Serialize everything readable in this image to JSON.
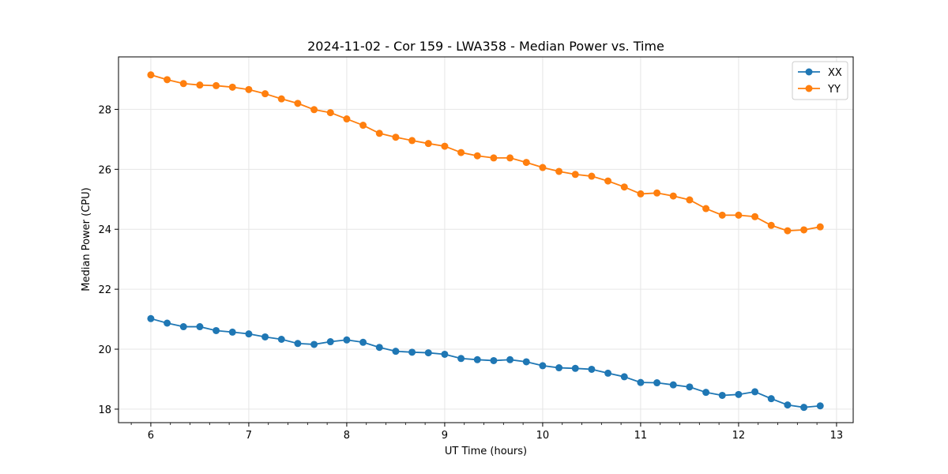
{
  "chart_data": {
    "type": "line",
    "title": "2024-11-02 - Cor 159 - LWA358 - Median Power vs. Time",
    "xlabel": "UT Time (hours)",
    "ylabel": "Median Power (CPU)",
    "xlim": [
      5.67,
      13.17
    ],
    "ylim": [
      17.55,
      29.75
    ],
    "xticks": [
      6,
      7,
      8,
      9,
      10,
      11,
      12,
      13
    ],
    "yticks": [
      18,
      20,
      22,
      24,
      26,
      28
    ],
    "grid": true,
    "legend_position": "top-right",
    "x": [
      6.0,
      6.1667,
      6.3333,
      6.5,
      6.6667,
      6.8333,
      7.0,
      7.1667,
      7.3333,
      7.5,
      7.6667,
      7.8333,
      8.0,
      8.1667,
      8.3333,
      8.5,
      8.6667,
      8.8333,
      9.0,
      9.1667,
      9.3333,
      9.5,
      9.6667,
      9.8333,
      10.0,
      10.1667,
      10.3333,
      10.5,
      10.6667,
      10.8333,
      11.0,
      11.1667,
      11.3333,
      11.5,
      11.6667,
      11.8333,
      12.0,
      12.1667,
      12.3333,
      12.5,
      12.6667,
      12.8333
    ],
    "series": [
      {
        "name": "XX",
        "color": "#1f77b4",
        "values": [
          21.02,
          20.87,
          20.75,
          20.75,
          20.62,
          20.57,
          20.51,
          20.41,
          20.33,
          20.19,
          20.16,
          20.25,
          20.31,
          20.23,
          20.06,
          19.93,
          19.9,
          19.88,
          19.83,
          19.69,
          19.65,
          19.62,
          19.65,
          19.58,
          19.45,
          19.38,
          19.36,
          19.33,
          19.2,
          19.08,
          18.89,
          18.88,
          18.81,
          18.74,
          18.56,
          18.46,
          18.49,
          18.58,
          18.35,
          18.14,
          18.06,
          18.11
        ]
      },
      {
        "name": "YY",
        "color": "#ff7f0e",
        "values": [
          29.15,
          28.99,
          28.86,
          28.81,
          28.79,
          28.74,
          28.66,
          28.52,
          28.35,
          28.2,
          27.99,
          27.89,
          27.68,
          27.47,
          27.2,
          27.07,
          26.96,
          26.86,
          26.77,
          26.56,
          26.45,
          26.38,
          26.38,
          26.23,
          26.06,
          25.93,
          25.83,
          25.77,
          25.61,
          25.41,
          25.18,
          25.21,
          25.11,
          24.98,
          24.69,
          24.47,
          24.47,
          24.42,
          24.13,
          23.95,
          23.98,
          24.08
        ]
      }
    ]
  },
  "colors": {
    "grid": "#e6e6e6",
    "axis": "#000000",
    "legend_border": "#cccccc"
  }
}
